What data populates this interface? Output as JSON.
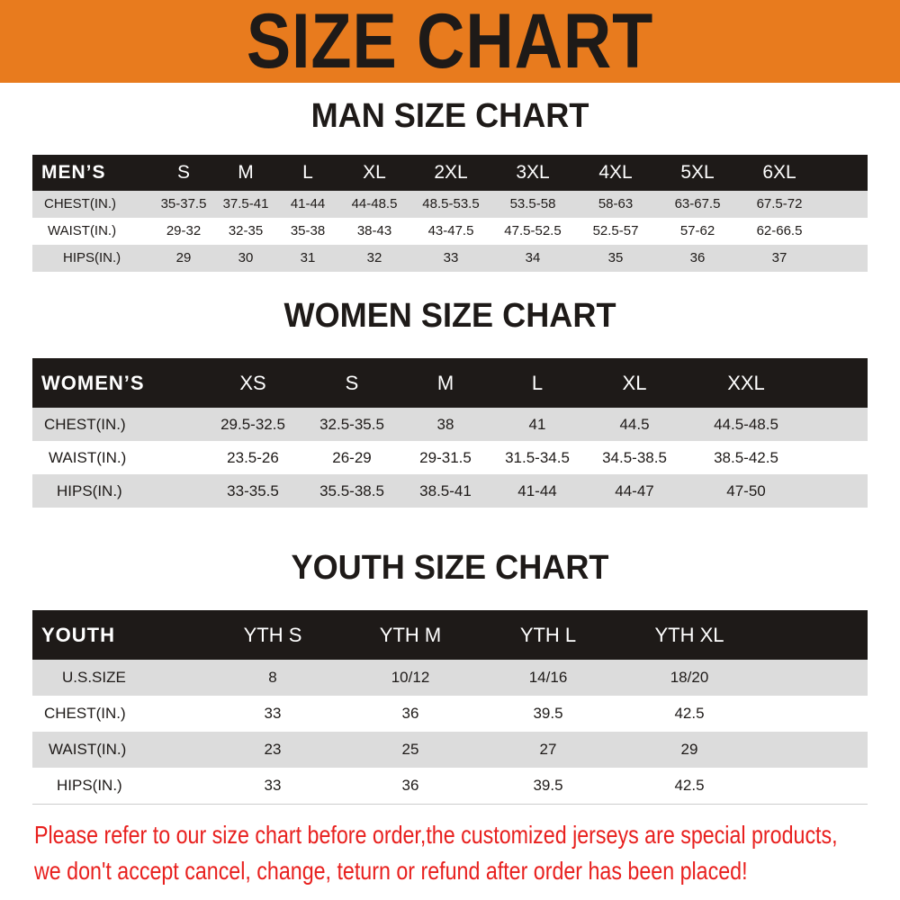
{
  "title": "SIZE CHART",
  "colors": {
    "banner": "#e87b1e",
    "header_row": "#1e1a18",
    "stripe": "#dcdcdc",
    "note": "#e8201e"
  },
  "men": {
    "title": "MAN SIZE CHART",
    "header": [
      "MEN’S",
      "S",
      "M",
      "L",
      "XL",
      "2XL",
      "3XL",
      "4XL",
      "5XL",
      "6XL"
    ],
    "rows": [
      [
        "CHEST(IN.)",
        "35-37.5",
        "37.5-41",
        "41-44",
        "44-48.5",
        "48.5-53.5",
        "53.5-58",
        "58-63",
        "63-67.5",
        "67.5-72"
      ],
      [
        "WAIST(IN.)",
        "29-32",
        "32-35",
        "35-38",
        "38-43",
        "43-47.5",
        "47.5-52.5",
        "52.5-57",
        "57-62",
        "62-66.5"
      ],
      [
        "HIPS(IN.)",
        "29",
        "30",
        "31",
        "32",
        "33",
        "34",
        "35",
        "36",
        "37"
      ]
    ]
  },
  "women": {
    "title": "WOMEN SIZE CHART",
    "header": [
      "WOMEN’S",
      "XS",
      "S",
      "M",
      "L",
      "XL",
      "XXL"
    ],
    "rows": [
      [
        "CHEST(IN.)",
        "29.5-32.5",
        "32.5-35.5",
        "38",
        "41",
        "44.5",
        "44.5-48.5"
      ],
      [
        "WAIST(IN.)",
        "23.5-26",
        "26-29",
        "29-31.5",
        "31.5-34.5",
        "34.5-38.5",
        "38.5-42.5"
      ],
      [
        "HIPS(IN.)",
        "33-35.5",
        "35.5-38.5",
        "38.5-41",
        "41-44",
        "44-47",
        "47-50"
      ]
    ]
  },
  "youth": {
    "title": "YOUTH SIZE CHART",
    "header": [
      "YOUTH",
      "YTH S",
      "YTH M",
      "YTH L",
      "YTH XL"
    ],
    "rows": [
      [
        "U.S.SIZE",
        "8",
        "10/12",
        "14/16",
        "18/20"
      ],
      [
        "CHEST(IN.)",
        "33",
        "36",
        "39.5",
        "42.5"
      ],
      [
        "WAIST(IN.)",
        "23",
        "25",
        "27",
        "29"
      ],
      [
        "HIPS(IN.)",
        "33",
        "36",
        "39.5",
        "42.5"
      ]
    ]
  },
  "notice": [
    "Please refer to our size chart before order,the customized jerseys are special products,",
    "we don't accept cancel, change, teturn or refund after order has been placed!"
  ]
}
